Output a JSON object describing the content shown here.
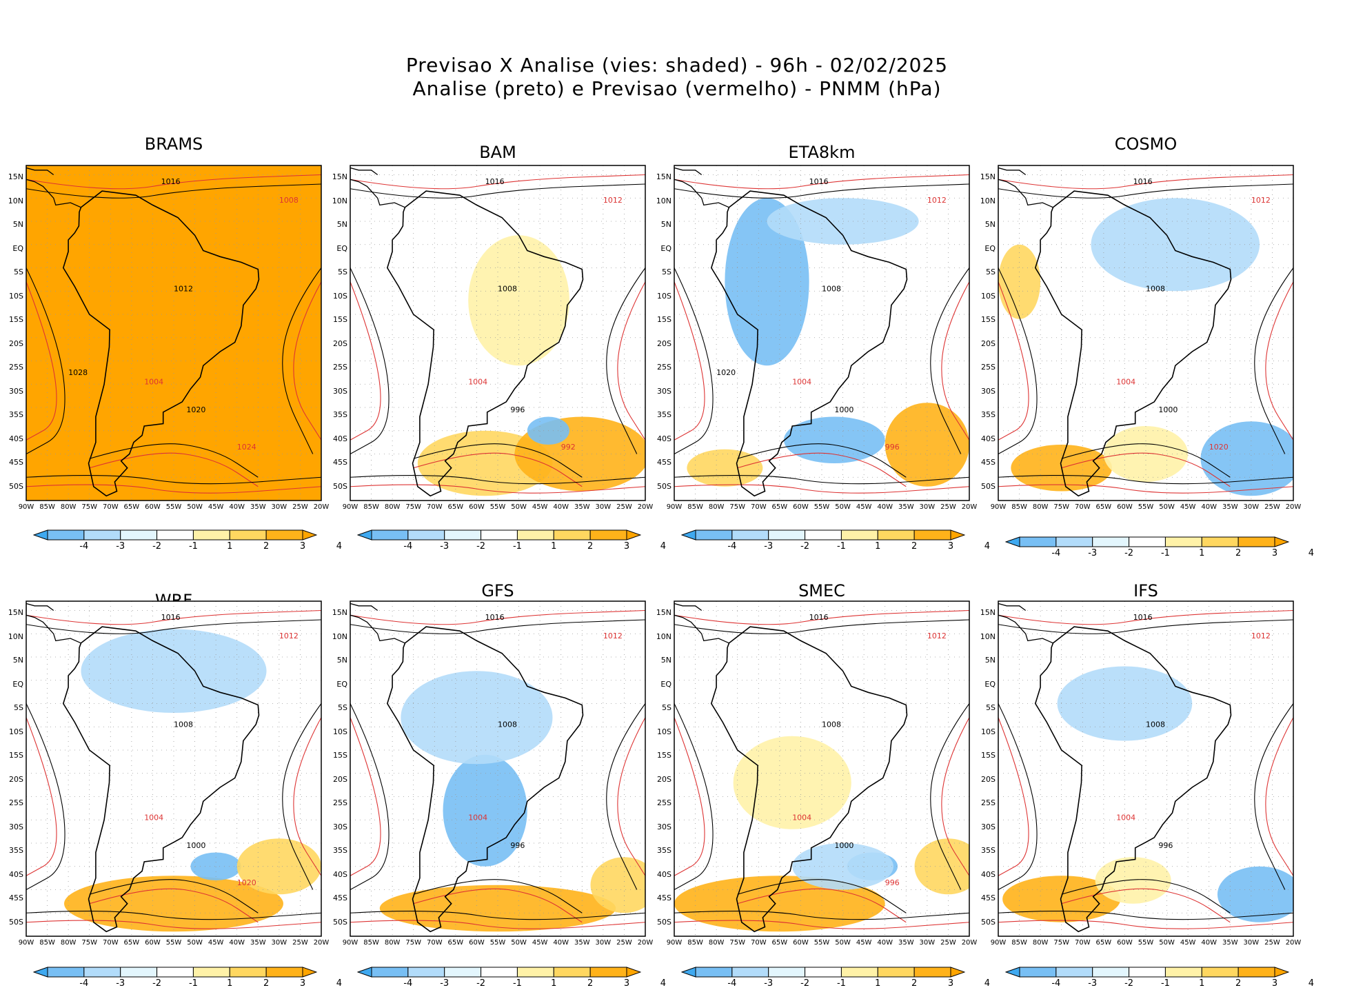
{
  "title_line1": "Previsao X Analise (vies: shaded) - 96h - 02/02/2025",
  "title_line2": "Analise (preto) e Previsao (vermelho) - PNMM (hPa)",
  "lat_labels": [
    "15N",
    "10N",
    "5N",
    "EQ",
    "5S",
    "10S",
    "15S",
    "20S",
    "25S",
    "30S",
    "35S",
    "40S",
    "45S",
    "50S"
  ],
  "lon_labels": [
    "90W",
    "85W",
    "80W",
    "75W",
    "70W",
    "65W",
    "60W",
    "55W",
    "50W",
    "45W",
    "40W",
    "35W",
    "30W",
    "25W",
    "20W"
  ],
  "colorbar": {
    "labels": [
      "-4",
      "-3",
      "-2",
      "-1",
      "1",
      "2",
      "3",
      "4"
    ],
    "colors": [
      "#3fa9f0",
      "#78bff4",
      "#b2dcfa",
      "#e3f6fd",
      "#ffffff",
      "#fff2a8",
      "#ffd760",
      "#ffb21a",
      "#ffa500"
    ]
  },
  "panels": [
    {
      "name": "BRAMS",
      "contours": [
        {
          "label": "1016"
        },
        {
          "label": "1008"
        },
        {
          "label": "1012"
        },
        {
          "label": "1004"
        },
        {
          "label": "1020"
        },
        {
          "label": "1024"
        },
        {
          "label": "1028"
        }
      ]
    },
    {
      "name": "BAM",
      "contours": [
        {
          "label": "1016"
        },
        {
          "label": "1012"
        },
        {
          "label": "1008"
        },
        {
          "label": "1004"
        },
        {
          "label": "996"
        },
        {
          "label": "992"
        }
      ]
    },
    {
      "name": "ETA8km",
      "contours": [
        {
          "label": "1016"
        },
        {
          "label": "1012"
        },
        {
          "label": "1008"
        },
        {
          "label": "1004"
        },
        {
          "label": "1000"
        },
        {
          "label": "996"
        },
        {
          "label": "1020"
        }
      ]
    },
    {
      "name": "COSMO",
      "contours": [
        {
          "label": "1016"
        },
        {
          "label": "1012"
        },
        {
          "label": "1008"
        },
        {
          "label": "1004"
        },
        {
          "label": "1000"
        },
        {
          "label": "1020"
        }
      ]
    },
    {
      "name": "WRF",
      "contours": [
        {
          "label": "1016"
        },
        {
          "label": "1012"
        },
        {
          "label": "1008"
        },
        {
          "label": "1004"
        },
        {
          "label": "1000"
        },
        {
          "label": "1020"
        }
      ]
    },
    {
      "name": "GFS",
      "contours": [
        {
          "label": "1016"
        },
        {
          "label": "1012"
        },
        {
          "label": "1008"
        },
        {
          "label": "1004"
        },
        {
          "label": "996"
        }
      ]
    },
    {
      "name": "SMEC",
      "contours": [
        {
          "label": "1016"
        },
        {
          "label": "1012"
        },
        {
          "label": "1008"
        },
        {
          "label": "1004"
        },
        {
          "label": "1000"
        },
        {
          "label": "996"
        }
      ]
    },
    {
      "name": "IFS",
      "contours": [
        {
          "label": "1016"
        },
        {
          "label": "1012"
        },
        {
          "label": "1008"
        },
        {
          "label": "1004"
        },
        {
          "label": "996"
        }
      ]
    }
  ]
}
